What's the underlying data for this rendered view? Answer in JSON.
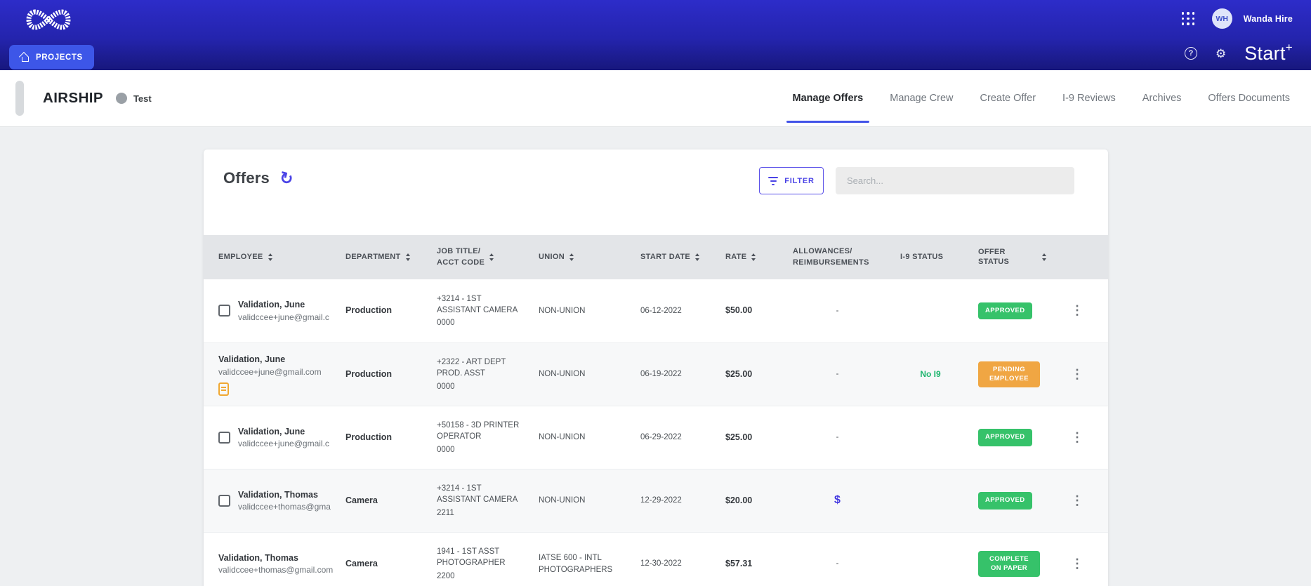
{
  "header": {
    "projects_label": "PROJECTS",
    "brand_base": "Start",
    "brand_plus": "+",
    "user": {
      "initials": "WH",
      "name": "Wanda Hire"
    }
  },
  "project_bar": {
    "title": "AIRSHIP",
    "badge": "Test",
    "tabs": [
      {
        "label": "Manage Offers",
        "active": true
      },
      {
        "label": "Manage Crew",
        "active": false
      },
      {
        "label": "Create Offer",
        "active": false
      },
      {
        "label": "I-9 Reviews",
        "active": false
      },
      {
        "label": "Archives",
        "active": false
      },
      {
        "label": "Offers Documents",
        "active": false
      }
    ]
  },
  "offers": {
    "title": "Offers",
    "filter_label": "FILTER",
    "search_placeholder": "Search...",
    "columns": [
      {
        "key": "employee",
        "lines": [
          "EMPLOYEE"
        ],
        "sortable": true
      },
      {
        "key": "dept",
        "lines": [
          "DEPARTMENT"
        ],
        "sortable": true
      },
      {
        "key": "job",
        "lines": [
          "JOB TITLE/",
          "ACCT CODE"
        ],
        "sortable": true
      },
      {
        "key": "union",
        "lines": [
          "UNION"
        ],
        "sortable": true
      },
      {
        "key": "start",
        "lines": [
          "START DATE"
        ],
        "sortable": true
      },
      {
        "key": "rate",
        "lines": [
          "RATE"
        ],
        "sortable": true
      },
      {
        "key": "allow",
        "lines": [
          "ALLOWANCES/",
          "REIMBURSEMENTS"
        ],
        "sortable": false
      },
      {
        "key": "i9",
        "lines": [
          "I-9 STATUS"
        ],
        "sortable": false
      },
      {
        "key": "status",
        "lines": [
          "OFFER STATUS"
        ],
        "sortable": true
      },
      {
        "key": "kebab",
        "lines": [],
        "sortable": false
      }
    ],
    "rows": [
      {
        "has_checkbox": true,
        "name": "Validation, June",
        "email": "validccee+june@gmail.c",
        "has_doc_icon": false,
        "department": "Production",
        "job": "+3214 - 1ST ASSISTANT CAMERA",
        "acct_code": "0000",
        "union": "NON-UNION",
        "start_date": "06-12-2022",
        "rate": "$50.00",
        "allowances": "-",
        "has_allowance_icon": false,
        "i9_status": "",
        "offer_status": {
          "label": "APPROVED",
          "variant": "green"
        }
      },
      {
        "has_checkbox": false,
        "name": "Validation, June",
        "email": "validccee+june@gmail.com",
        "has_doc_icon": true,
        "department": "Production",
        "job": "+2322 - ART DEPT PROD. ASST",
        "acct_code": "0000",
        "union": "NON-UNION",
        "start_date": "06-19-2022",
        "rate": "$25.00",
        "allowances": "-",
        "has_allowance_icon": false,
        "i9_status": "No I9",
        "offer_status": {
          "label": "PENDING EMPLOYEE",
          "variant": "orange"
        }
      },
      {
        "has_checkbox": true,
        "name": "Validation, June",
        "email": "validccee+june@gmail.c",
        "has_doc_icon": false,
        "department": "Production",
        "job": "+50158 - 3D PRINTER OPERATOR",
        "acct_code": "0000",
        "union": "NON-UNION",
        "start_date": "06-29-2022",
        "rate": "$25.00",
        "allowances": "-",
        "has_allowance_icon": false,
        "i9_status": "",
        "offer_status": {
          "label": "APPROVED",
          "variant": "green"
        }
      },
      {
        "has_checkbox": true,
        "name": "Validation, Thomas",
        "email": "validccee+thomas@gma",
        "has_doc_icon": false,
        "department": "Camera",
        "job": "+3214 - 1ST ASSISTANT CAMERA",
        "acct_code": "2211",
        "union": "NON-UNION",
        "start_date": "12-29-2022",
        "rate": "$20.00",
        "allowances": "$",
        "has_allowance_icon": true,
        "i9_status": "",
        "offer_status": {
          "label": "APPROVED",
          "variant": "green"
        }
      },
      {
        "has_checkbox": false,
        "name": "Validation, Thomas",
        "email": "validccee+thomas@gmail.com",
        "has_doc_icon": false,
        "department": "Camera",
        "job": "1941 - 1ST ASST PHOTOGRAPHER",
        "acct_code": "2200",
        "union": "IATSE 600 - INTL PHOTOGRAPHERS",
        "start_date": "12-30-2022",
        "rate": "$57.31",
        "allowances": "-",
        "has_allowance_icon": false,
        "i9_status": "",
        "offer_status": {
          "label": "COMPLETE ON PAPER",
          "variant": "green"
        }
      }
    ]
  },
  "colors": {
    "accent": "#4253e8",
    "indigo": "#4a43e6",
    "badge_green": "#36c26a",
    "badge_orange": "#f0a643",
    "i9_green": "#1db56e",
    "doc_orange": "#f0a832",
    "header_gradient_top": "#2d2cc9",
    "header_gradient_bottom": "#17177c"
  }
}
